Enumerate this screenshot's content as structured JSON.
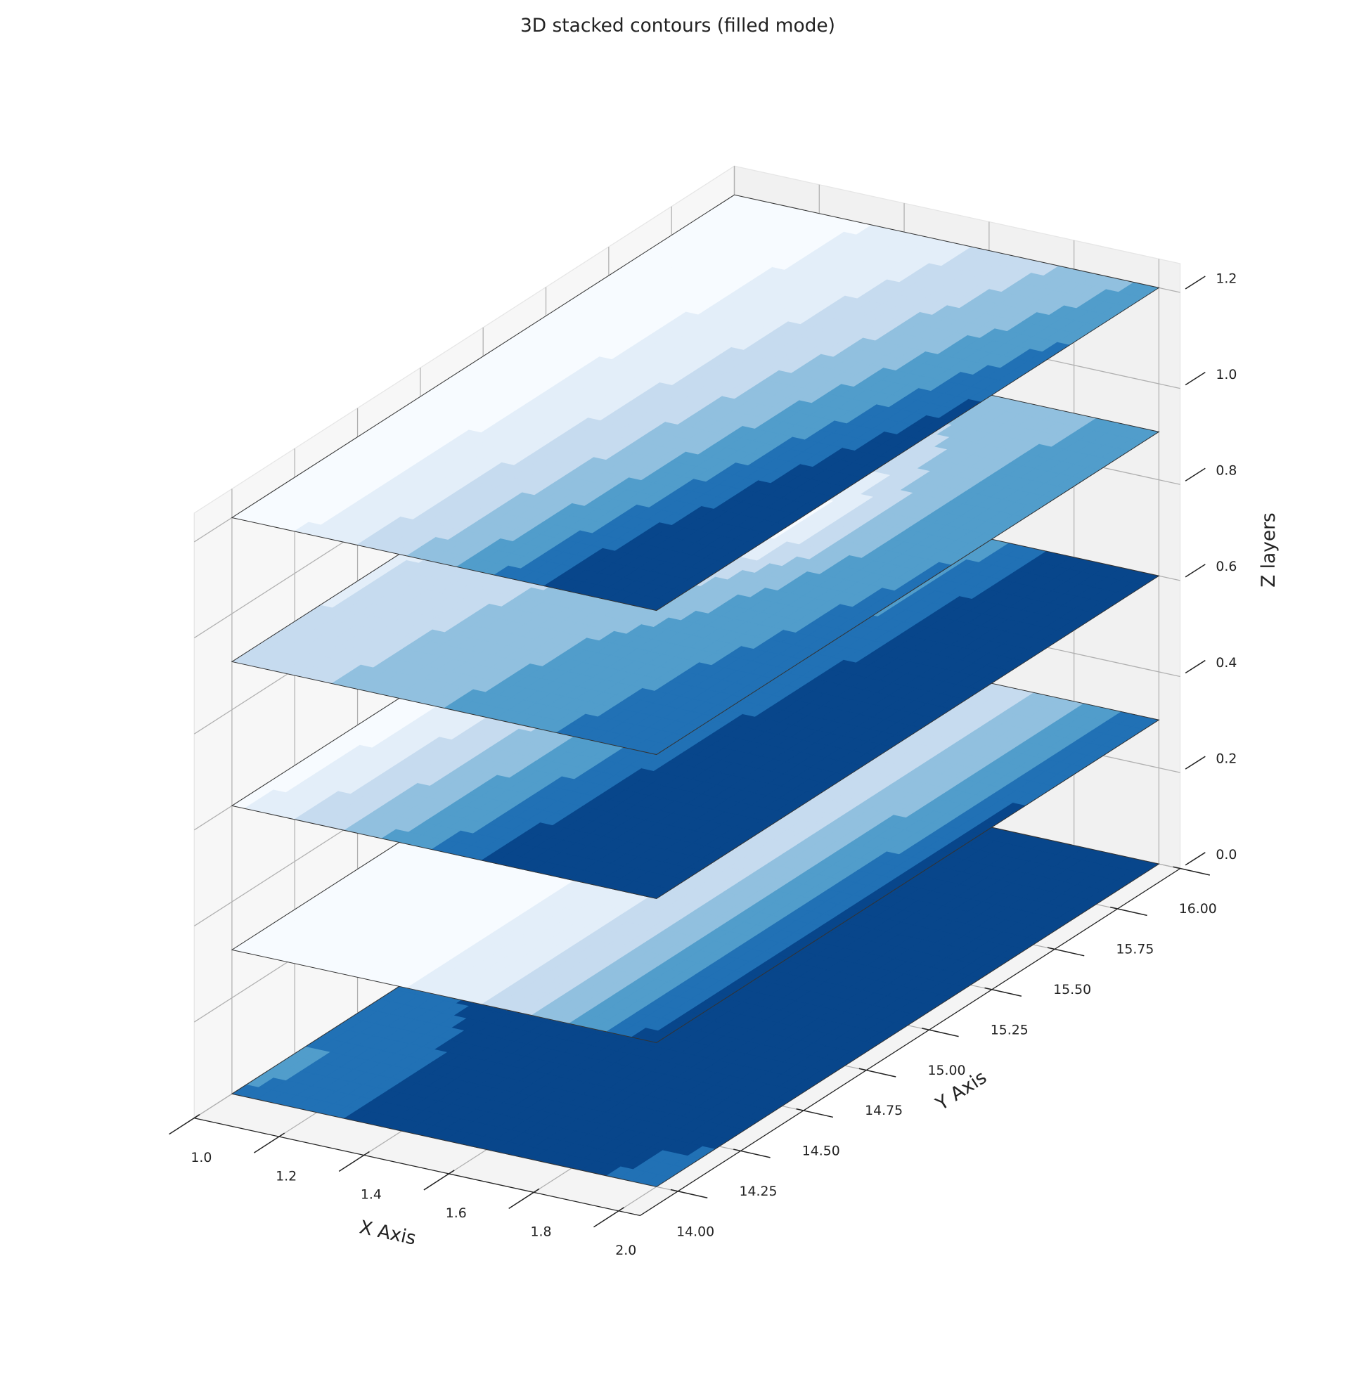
{
  "chart_data": {
    "type": "contour3d",
    "title": "3D stacked contours (filled mode)",
    "xlabel": "X Axis",
    "ylabel": "Y Axis",
    "zlabel": "Z layers",
    "xlim": [
      1,
      2
    ],
    "ylim": [
      14,
      16
    ],
    "zlim": [
      0,
      1.2
    ],
    "xticks": [
      {
        "value": 1,
        "label": "1.0"
      },
      1.2,
      1.4,
      1.6,
      1.8,
      {
        "value": 2,
        "label": "2.0"
      }
    ],
    "yticks": [
      {
        "value": 14,
        "label": "14.00"
      },
      14.25,
      {
        "value": 14.5,
        "label": "14.50"
      },
      14.75,
      {
        "value": 15,
        "label": "15.00"
      },
      15.25,
      {
        "value": 15.5,
        "label": "15.50"
      },
      15.75,
      {
        "value": 16,
        "label": "16.00"
      }
    ],
    "zticks": [
      {
        "value": 0,
        "label": "0.0"
      },
      0.2,
      0.4,
      0.6,
      0.8,
      {
        "value": 1,
        "label": "1.0"
      },
      1.2
    ],
    "layers": [
      0,
      0.3,
      0.6,
      0.9,
      1.2
    ],
    "colormap": "Blues",
    "grid": true
  }
}
